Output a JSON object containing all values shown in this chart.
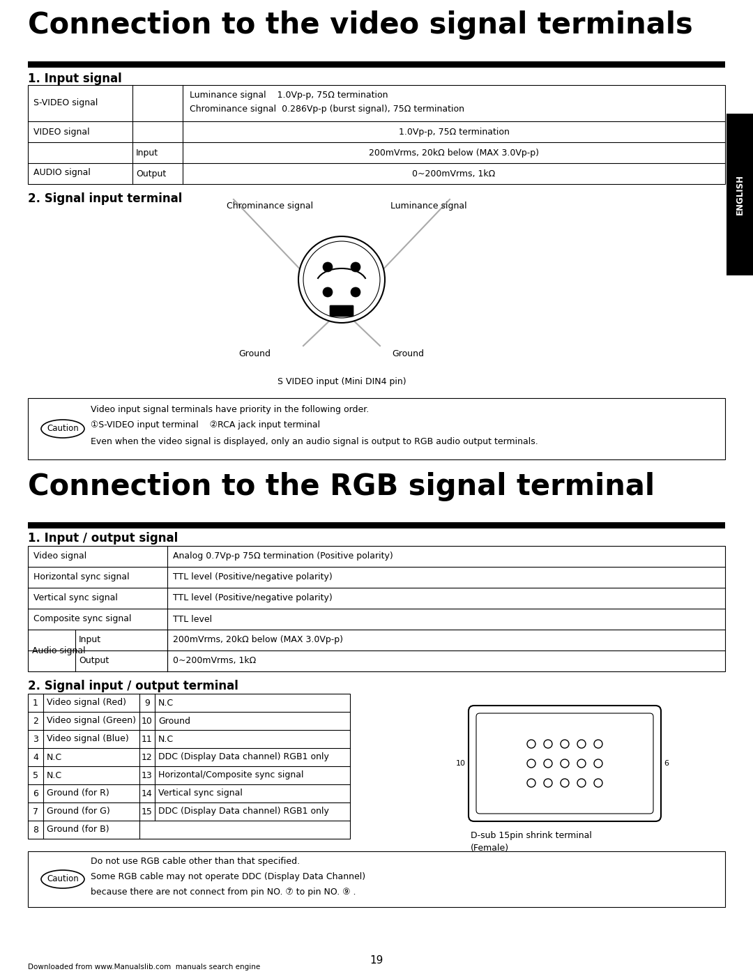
{
  "title1": "Connection to the video signal terminals",
  "title2": "Connection to the RGB signal terminal",
  "section1_heading": "1. Input signal",
  "section2_heading": "2. Signal input terminal",
  "section3_heading": "1. Input / output signal",
  "section4_heading": "2. Signal input / output terminal",
  "bg_color": "#ffffff",
  "caution1_lines": [
    "Video input signal terminals have priority in the following order.",
    "①S-VIDEO input terminal    ②RCA jack input terminal",
    "Even when the video signal is displayed, only an audio signal is output to RGB audio output terminals."
  ],
  "caution2_lines": [
    "Do not use RGB cable other than that specified.",
    "Some RGB cable may not operate DDC (Display Data Channel)",
    "because there are not connect from pin NO. ⑦ to pin NO. ⑨ ."
  ],
  "svideo_label": "S VIDEO input (Mini DIN4 pin)",
  "dsub_label1": "D-sub 15pin shrink terminal",
  "dsub_label2": "(Female)",
  "page_number": "19",
  "footer": "Downloaded from www.Manualslib.com  manuals search engine"
}
